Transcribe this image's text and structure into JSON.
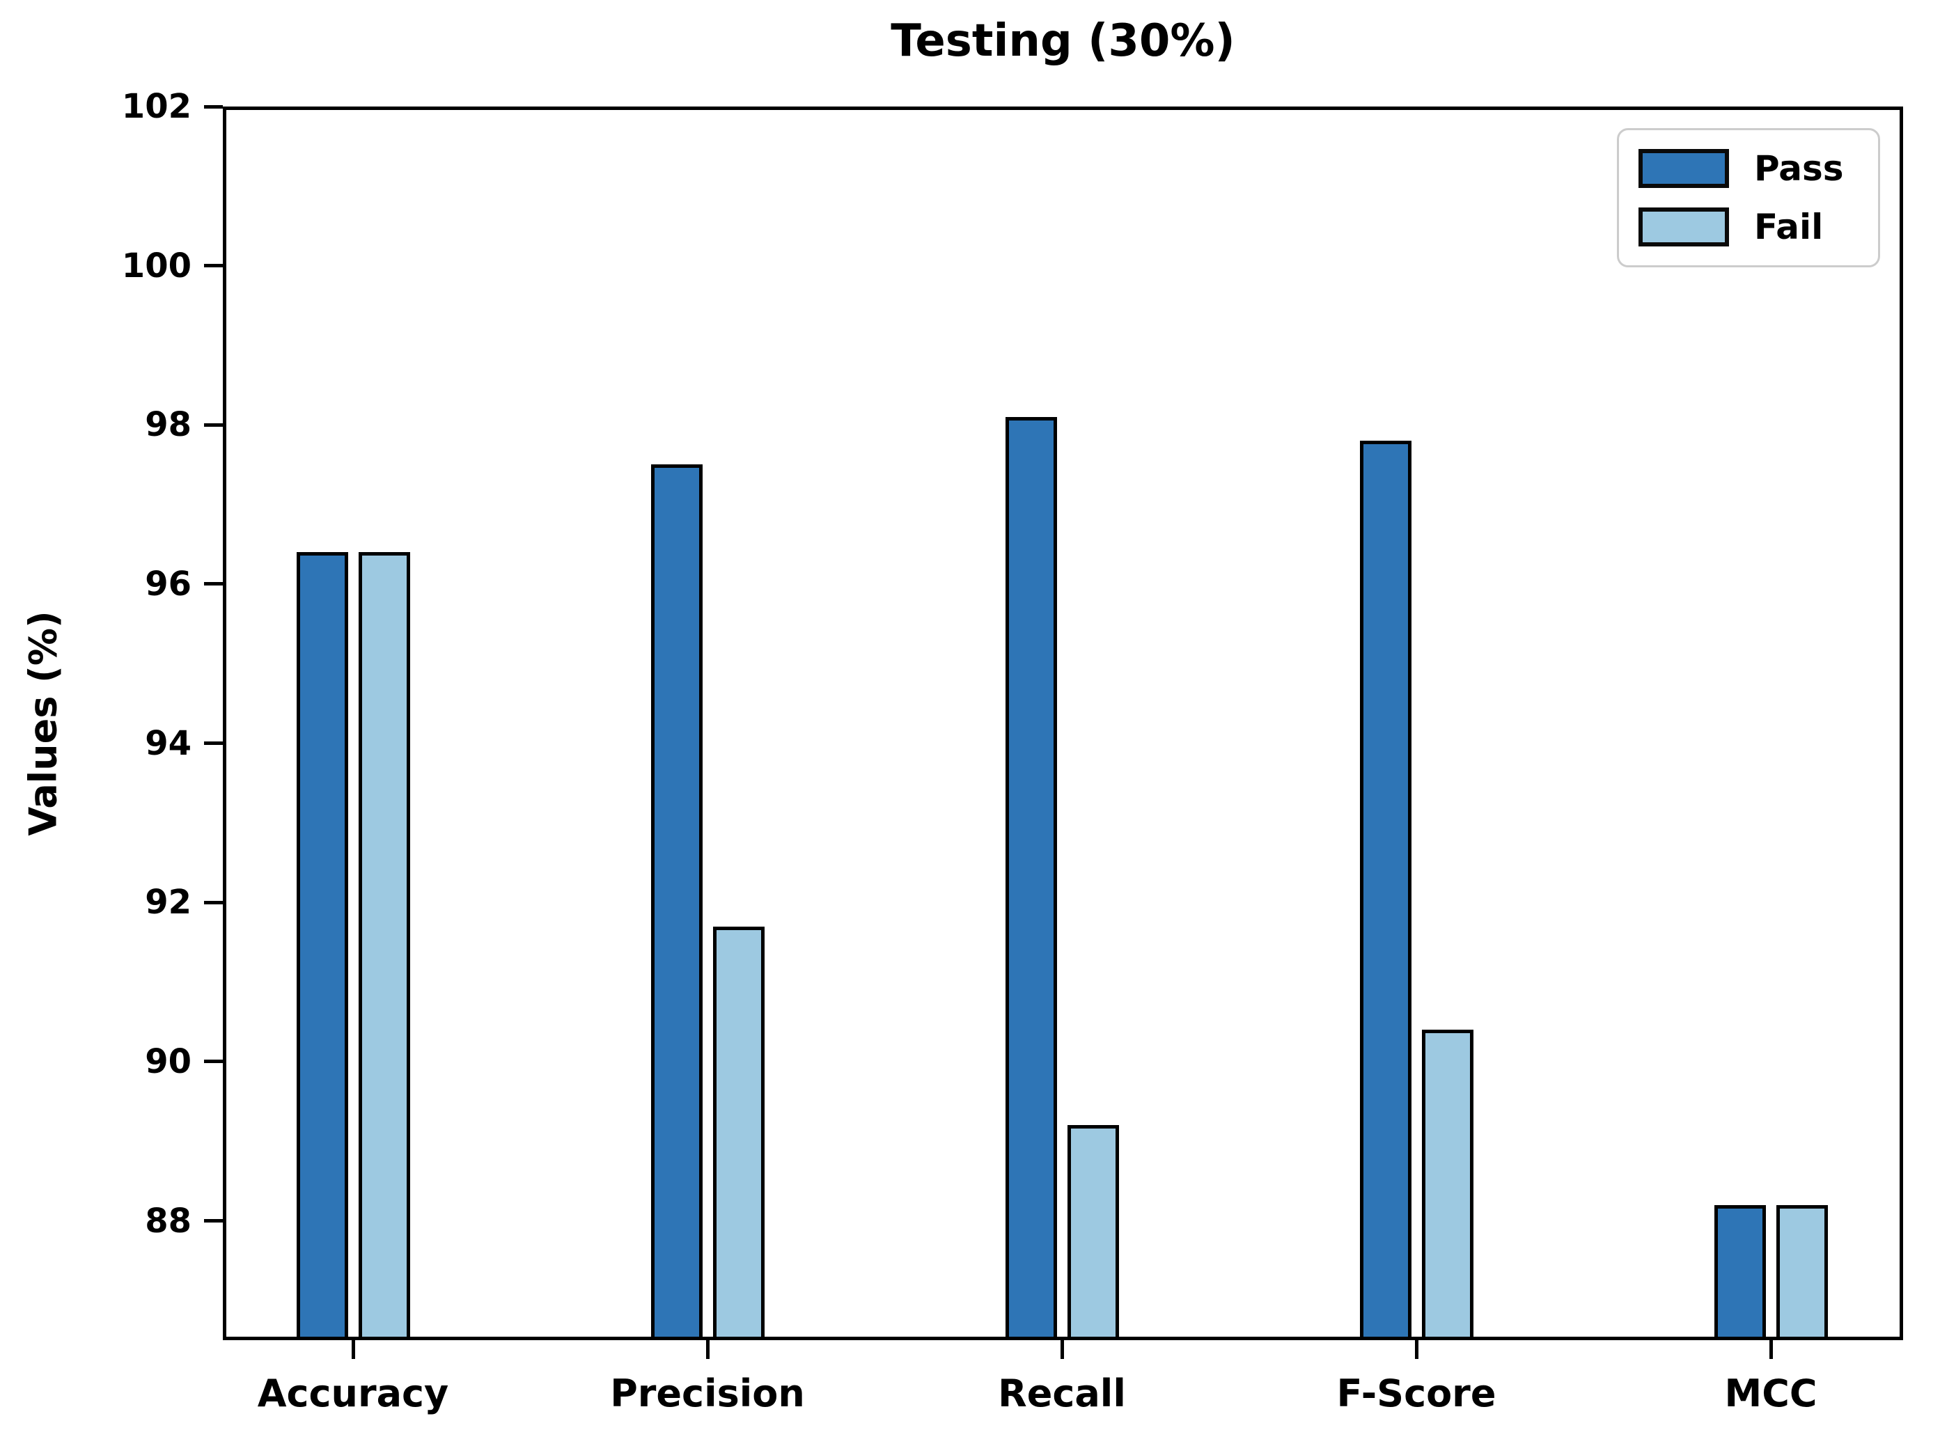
{
  "chart_data": {
    "type": "bar",
    "title": "Testing (30%)",
    "categories": [
      "Accuracy",
      "Precision",
      "Recall",
      "F-Score",
      "MCC"
    ],
    "series": [
      {
        "name": "Pass",
        "color": "#2E75B6",
        "values": [
          96.4,
          97.5,
          98.1,
          97.8,
          88.2
        ]
      },
      {
        "name": "Fail",
        "color": "#9DC9E1",
        "values": [
          96.4,
          91.7,
          89.2,
          90.4,
          88.2
        ]
      }
    ],
    "xlabel": "",
    "ylabel": "Values (%)",
    "ylim": [
      86.5,
      102
    ],
    "yticks": [
      88,
      90,
      92,
      94,
      96,
      98,
      100,
      102
    ],
    "grid": false,
    "legend_position": "upper right",
    "bar_edge_color": "#000000",
    "background_color": "#ffffff"
  }
}
